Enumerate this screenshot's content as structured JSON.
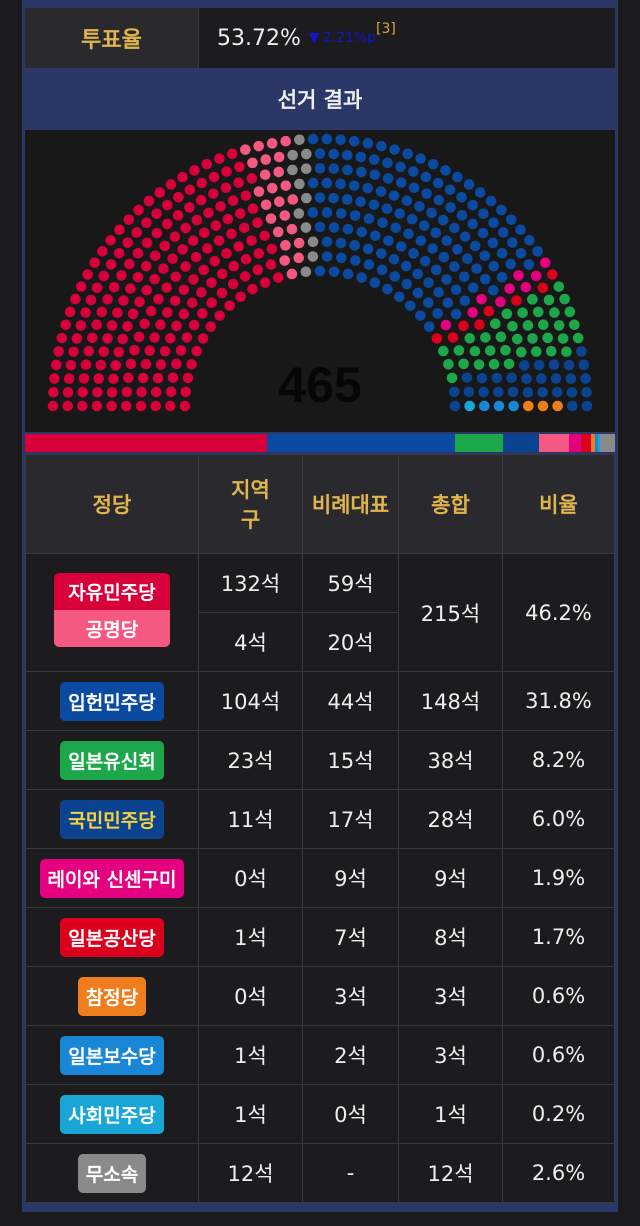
{
  "turnout": {
    "label": "투표율",
    "value": "53.72%",
    "change_icon": "triangle-down",
    "change": "2.21%p",
    "ref": "[3]"
  },
  "section_title": "선거 결과",
  "total_seats": "465",
  "table": {
    "headers": [
      "정당",
      "지역구",
      "비례대표",
      "총합",
      "비율"
    ]
  },
  "coalition": {
    "parties": [
      {
        "name": "자유민주당",
        "color": "#d7003a",
        "district": "132석",
        "pr": "59석",
        "seats": 191
      },
      {
        "name": "공명당",
        "color": "#f55881",
        "district": "4석",
        "pr": "20석",
        "seats": 24
      }
    ],
    "total": "215석",
    "ratio": "46.2%"
  },
  "parties": [
    {
      "name": "입헌민주당",
      "color": "#0a4aa0",
      "text": "#ffffff",
      "district": "104석",
      "pr": "44석",
      "total": "148석",
      "ratio": "31.8%",
      "seats": 148
    },
    {
      "name": "일본유신회",
      "color": "#1ca84a",
      "text": "#ffffff",
      "district": "23석",
      "pr": "15석",
      "total": "38석",
      "ratio": "8.2%",
      "seats": 38
    },
    {
      "name": "국민민주당",
      "color": "#0a4490",
      "text": "#f7d23a",
      "district": "11석",
      "pr": "17석",
      "total": "28석",
      "ratio": "6.0%",
      "seats": 28
    },
    {
      "name": "레이와 신센구미",
      "color": "#e4007f",
      "text": "#ffffff",
      "district": "0석",
      "pr": "9석",
      "total": "9석",
      "ratio": "1.9%",
      "seats": 9
    },
    {
      "name": "일본공산당",
      "color": "#db001c",
      "text": "#ffffff",
      "district": "1석",
      "pr": "7석",
      "total": "8석",
      "ratio": "1.7%",
      "seats": 8
    },
    {
      "name": "참정당",
      "color": "#f07d1c",
      "text": "#ffffff",
      "district": "0석",
      "pr": "3석",
      "total": "3석",
      "ratio": "0.6%",
      "seats": 3
    },
    {
      "name": "일본보수당",
      "color": "#1a86d6",
      "text": "#ffffff",
      "district": "1석",
      "pr": "2석",
      "total": "3석",
      "ratio": "0.6%",
      "seats": 3
    },
    {
      "name": "사회민주당",
      "color": "#19a6d6",
      "text": "#ffffff",
      "district": "1석",
      "pr": "0석",
      "total": "1석",
      "ratio": "0.2%",
      "seats": 1
    },
    {
      "name": "무소속",
      "color": "#8a8a8a",
      "text": "#ffffff",
      "district": "12석",
      "pr": "-",
      "total": "12석",
      "ratio": "2.6%",
      "seats": 12
    }
  ]
}
